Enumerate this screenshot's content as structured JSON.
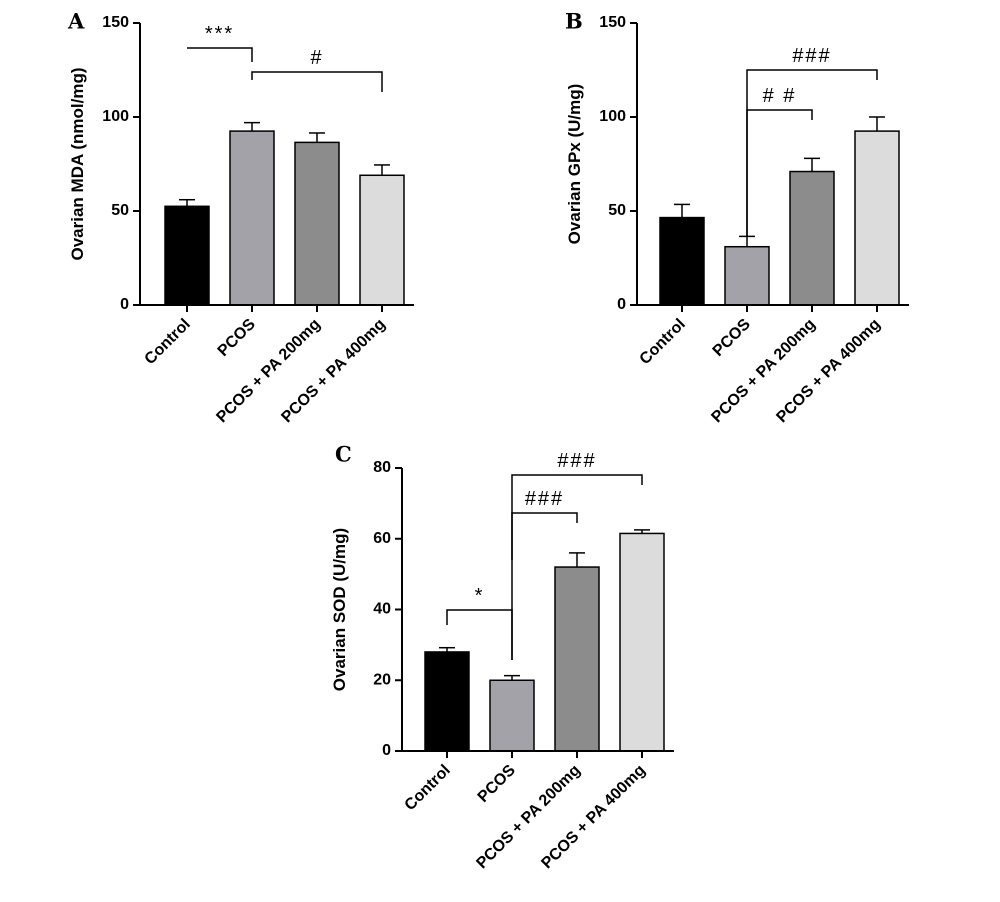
{
  "chart_data": [
    {
      "panel": "A",
      "type": "bar",
      "title": "",
      "xlabel": "",
      "ylabel": "Ovarian MDA (nmol/mg)",
      "ylim": [
        0,
        150
      ],
      "yticks": [
        0,
        50,
        100,
        150
      ],
      "grid": false,
      "categories": [
        "Control",
        "PCOS",
        "PCOS + PA 200mg",
        "PCOS + PA 400mg"
      ],
      "values": [
        52.5,
        92.5,
        86.5,
        69
      ],
      "errors": [
        3.5,
        4.5,
        5,
        5.5
      ],
      "colors": [
        "#000000",
        "#a2a2a8",
        "#8c8c8c",
        "#dcdcdc"
      ],
      "annotations": [
        {
          "label": "***",
          "from": 0,
          "to": 1
        },
        {
          "label": "#",
          "from": 1,
          "to": 3
        }
      ]
    },
    {
      "panel": "B",
      "type": "bar",
      "title": "",
      "xlabel": "",
      "ylabel": "Ovarian GPx (U/mg)",
      "ylim": [
        0,
        150
      ],
      "yticks": [
        0,
        50,
        100,
        150
      ],
      "grid": false,
      "categories": [
        "Control",
        "PCOS",
        "PCOS + PA 200mg",
        "PCOS + PA 400mg"
      ],
      "values": [
        46.5,
        31,
        71,
        92.5
      ],
      "errors": [
        7,
        5.5,
        7,
        7.5
      ],
      "colors": [
        "#000000",
        "#a2a2a8",
        "#8c8c8c",
        "#dcdcdc"
      ],
      "annotations": [
        {
          "label": "# #",
          "from": 1,
          "to": 2
        },
        {
          "label": "###",
          "from": 1,
          "to": 3
        }
      ]
    },
    {
      "panel": "C",
      "type": "bar",
      "title": "",
      "xlabel": "",
      "ylabel": "Ovarian SOD (U/mg)",
      "ylim": [
        0,
        80
      ],
      "yticks": [
        0,
        20,
        40,
        60,
        80
      ],
      "grid": false,
      "categories": [
        "Control",
        "PCOS",
        "PCOS + PA 200mg",
        "PCOS + PA 400mg"
      ],
      "values": [
        28,
        20,
        52,
        61.5
      ],
      "errors": [
        1.2,
        1.3,
        4,
        1
      ],
      "colors": [
        "#000000",
        "#a2a2a8",
        "#8c8c8c",
        "#dcdcdc"
      ],
      "annotations": [
        {
          "label": "*",
          "from": 0,
          "to": 1
        },
        {
          "label": "###",
          "from": 1,
          "to": 2
        },
        {
          "label": "###",
          "from": 1,
          "to": 3
        }
      ]
    }
  ]
}
